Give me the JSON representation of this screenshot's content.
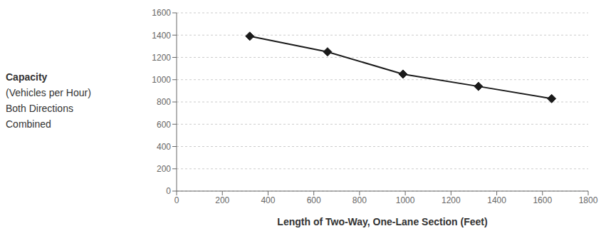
{
  "chart_data": {
    "type": "line",
    "xlabel": "Length of Two-Way, One-Lane Section (Feet)",
    "ylabel": [
      "Capacity",
      "(Vehicles per Hour)",
      "Both Directions",
      "Combined"
    ],
    "x": [
      320,
      660,
      990,
      1320,
      1640
    ],
    "series": [
      {
        "values": [
          1390,
          1250,
          1050,
          940,
          830
        ],
        "color": "#1a1a1a",
        "marker": "diamond"
      }
    ],
    "xlim": [
      0,
      1800
    ],
    "ylim": [
      0,
      1600
    ],
    "xticks": [
      0,
      200,
      400,
      600,
      800,
      1000,
      1200,
      1400,
      1600,
      1800
    ],
    "yticks": [
      0,
      200,
      400,
      600,
      800,
      1000,
      1200,
      1400,
      1600
    ],
    "grid": "y"
  }
}
